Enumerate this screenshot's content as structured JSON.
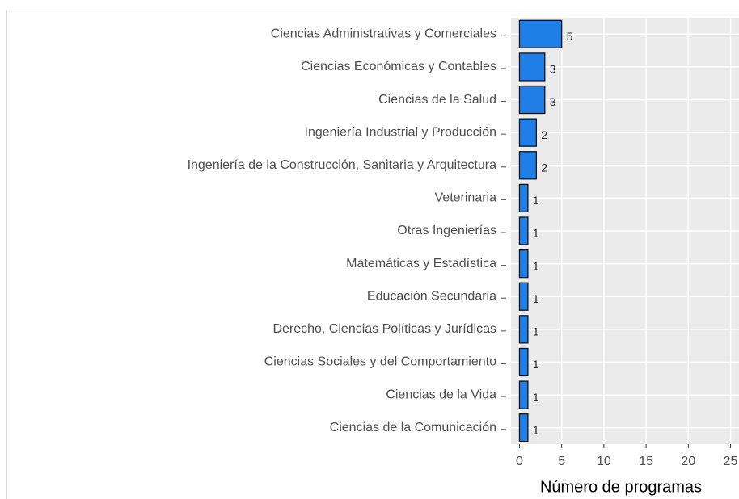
{
  "chart_data": {
    "type": "bar",
    "orientation": "horizontal",
    "x_label": "Número de programas",
    "categories": [
      "Ciencias Administrativas y Comerciales",
      "Ciencias Económicas y Contables",
      "Ciencias de la Salud",
      "Ingeniería Industrial y Producción",
      "Ingeniería de la Construcción, Sanitaria y Arquitectura",
      "Veterinaria",
      "Otras Ingenierías",
      "Matemáticas y Estadística",
      "Educación Secundaria",
      "Derecho, Ciencias Políticas y Jurídicas",
      "Ciencias Sociales y del Comportamiento",
      "Ciencias de la Vida",
      "Ciencias de la Comunicación"
    ],
    "values": [
      5,
      3,
      3,
      2,
      2,
      1,
      1,
      1,
      1,
      1,
      1,
      1,
      1
    ],
    "color": "#1f7fe6",
    "xlim": [
      -1,
      26
    ],
    "xticks": [
      0,
      5,
      10,
      15,
      20,
      25
    ],
    "grid": true
  }
}
